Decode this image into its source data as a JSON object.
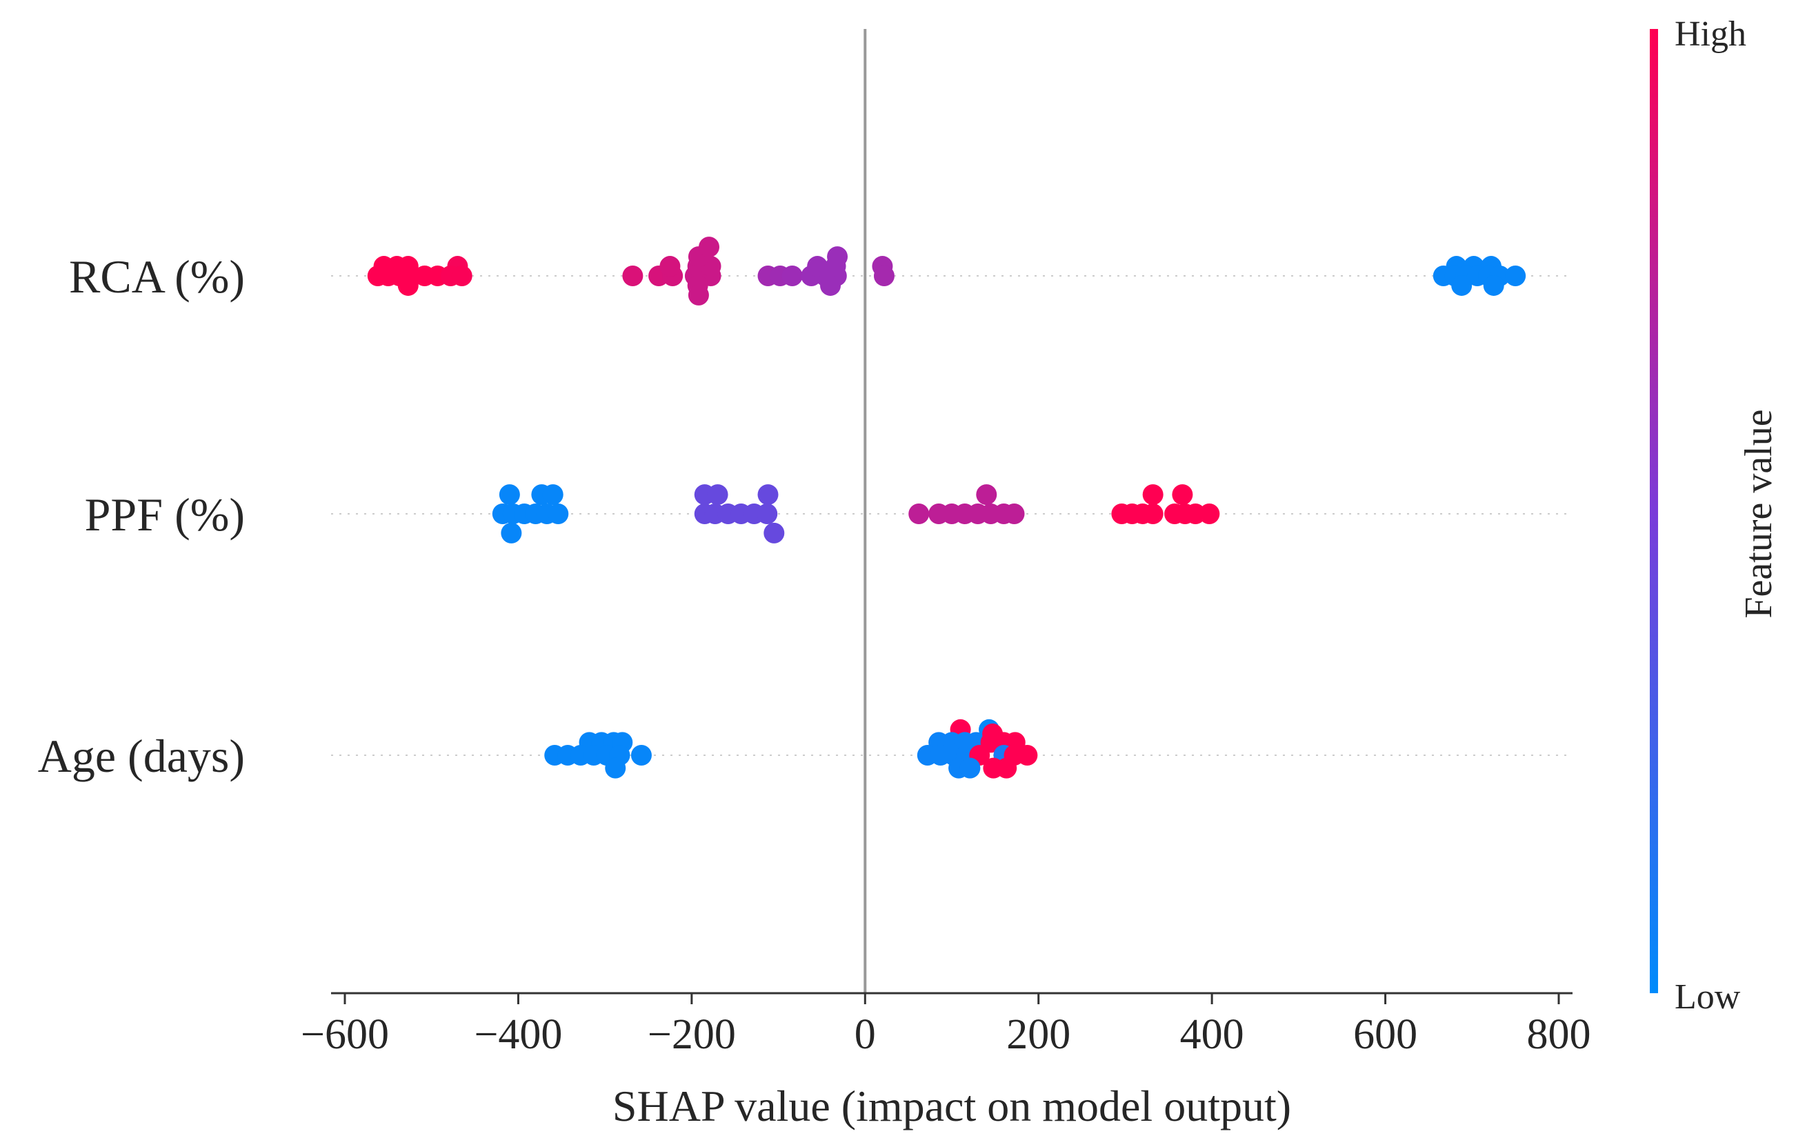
{
  "chart_data": {
    "type": "scatter",
    "subtype": "shap-beeswarm",
    "xlabel": "SHAP value (impact on model output)",
    "xlim": [
      -620,
      820
    ],
    "xticks": [
      -600,
      -400,
      -200,
      0,
      200,
      400,
      600,
      800
    ],
    "xtick_labels": [
      "−600",
      "−400",
      "−200",
      "0",
      "200",
      "400",
      "600",
      "800"
    ],
    "zero_line": 0,
    "features": [
      {
        "name": "RCA (%)",
        "points": [
          {
            "x": -555,
            "y": 0.45,
            "v": 1.0
          },
          {
            "x": -540,
            "y": 0.45,
            "v": 1.0
          },
          {
            "x": -527,
            "y": 0.45,
            "v": 1.0
          },
          {
            "x": -470,
            "y": 0.45,
            "v": 0.97
          },
          {
            "x": -562,
            "y": 0,
            "v": 1.0
          },
          {
            "x": -550,
            "y": 0,
            "v": 1.0
          },
          {
            "x": -537,
            "y": 0,
            "v": 1.0
          },
          {
            "x": -522,
            "y": 0,
            "v": 1.0
          },
          {
            "x": -508,
            "y": 0,
            "v": 1.0
          },
          {
            "x": -493,
            "y": 0,
            "v": 1.0
          },
          {
            "x": -478,
            "y": 0,
            "v": 0.98
          },
          {
            "x": -465,
            "y": 0,
            "v": 0.98
          },
          {
            "x": -527,
            "y": -0.45,
            "v": 1.0
          },
          {
            "x": -268,
            "y": 0,
            "v": 0.86
          },
          {
            "x": -238,
            "y": 0,
            "v": 0.85
          },
          {
            "x": -222,
            "y": 0,
            "v": 0.84
          },
          {
            "x": -196,
            "y": 0,
            "v": 0.8
          },
          {
            "x": -178,
            "y": 0,
            "v": 0.8
          },
          {
            "x": -225,
            "y": 0.45,
            "v": 0.84
          },
          {
            "x": -193,
            "y": 0.45,
            "v": 0.8
          },
          {
            "x": -178,
            "y": 0.45,
            "v": 0.8
          },
          {
            "x": -192,
            "y": 0.9,
            "v": 0.8
          },
          {
            "x": -180,
            "y": 1.35,
            "v": 0.8
          },
          {
            "x": -193,
            "y": -0.45,
            "v": 0.8
          },
          {
            "x": -192,
            "y": -0.9,
            "v": 0.8
          },
          {
            "x": -112,
            "y": 0,
            "v": 0.65
          },
          {
            "x": -98,
            "y": 0,
            "v": 0.64
          },
          {
            "x": -84,
            "y": 0,
            "v": 0.63
          },
          {
            "x": -62,
            "y": 0,
            "v": 0.62
          },
          {
            "x": -46,
            "y": 0,
            "v": 0.62
          },
          {
            "x": -33,
            "y": 0,
            "v": 0.62
          },
          {
            "x": -55,
            "y": 0.45,
            "v": 0.62
          },
          {
            "x": -34,
            "y": 0.45,
            "v": 0.62
          },
          {
            "x": -32,
            "y": 0.9,
            "v": 0.62
          },
          {
            "x": -40,
            "y": -0.45,
            "v": 0.62
          },
          {
            "x": 20,
            "y": 0.45,
            "v": 0.66
          },
          {
            "x": 22,
            "y": 0,
            "v": 0.66
          },
          {
            "x": 682,
            "y": 0.45,
            "v": 0.03
          },
          {
            "x": 702,
            "y": 0.45,
            "v": 0.03
          },
          {
            "x": 722,
            "y": 0.45,
            "v": 0.03
          },
          {
            "x": 667,
            "y": 0,
            "v": 0.03
          },
          {
            "x": 680,
            "y": 0,
            "v": 0.03
          },
          {
            "x": 693,
            "y": 0,
            "v": 0.03
          },
          {
            "x": 706,
            "y": 0,
            "v": 0.03
          },
          {
            "x": 719,
            "y": 0,
            "v": 0.03
          },
          {
            "x": 732,
            "y": 0,
            "v": 0.03
          },
          {
            "x": 750,
            "y": 0,
            "v": 0.03
          },
          {
            "x": 688,
            "y": -0.45,
            "v": 0.03
          },
          {
            "x": 725,
            "y": -0.45,
            "v": 0.03
          }
        ]
      },
      {
        "name": "PPF (%)",
        "points": [
          {
            "x": -410,
            "y": 0.9,
            "v": 0.03
          },
          {
            "x": -373,
            "y": 0.9,
            "v": 0.03
          },
          {
            "x": -360,
            "y": 0.9,
            "v": 0.03
          },
          {
            "x": -418,
            "y": 0,
            "v": 0.03
          },
          {
            "x": -406,
            "y": 0,
            "v": 0.03
          },
          {
            "x": -393,
            "y": 0,
            "v": 0.03
          },
          {
            "x": -380,
            "y": 0,
            "v": 0.03
          },
          {
            "x": -367,
            "y": 0,
            "v": 0.03
          },
          {
            "x": -354,
            "y": 0,
            "v": 0.03
          },
          {
            "x": -408,
            "y": -0.9,
            "v": 0.03
          },
          {
            "x": -185,
            "y": 0.9,
            "v": 0.42
          },
          {
            "x": -170,
            "y": 0.9,
            "v": 0.42
          },
          {
            "x": -112,
            "y": 0.9,
            "v": 0.42
          },
          {
            "x": -185,
            "y": 0,
            "v": 0.42
          },
          {
            "x": -173,
            "y": 0,
            "v": 0.42
          },
          {
            "x": -158,
            "y": 0,
            "v": 0.42
          },
          {
            "x": -143,
            "y": 0,
            "v": 0.42
          },
          {
            "x": -128,
            "y": 0,
            "v": 0.42
          },
          {
            "x": -113,
            "y": 0,
            "v": 0.42
          },
          {
            "x": -105,
            "y": -0.9,
            "v": 0.42
          },
          {
            "x": 140,
            "y": 0.9,
            "v": 0.75
          },
          {
            "x": 62,
            "y": 0,
            "v": 0.75
          },
          {
            "x": 85,
            "y": 0,
            "v": 0.75
          },
          {
            "x": 100,
            "y": 0,
            "v": 0.75
          },
          {
            "x": 115,
            "y": 0,
            "v": 0.75
          },
          {
            "x": 130,
            "y": 0,
            "v": 0.75
          },
          {
            "x": 145,
            "y": 0,
            "v": 0.75
          },
          {
            "x": 160,
            "y": 0,
            "v": 0.75
          },
          {
            "x": 172,
            "y": 0,
            "v": 0.75
          },
          {
            "x": 332,
            "y": 0.9,
            "v": 1.0
          },
          {
            "x": 366,
            "y": 0.9,
            "v": 1.0
          },
          {
            "x": 296,
            "y": 0,
            "v": 1.0
          },
          {
            "x": 308,
            "y": 0,
            "v": 1.0
          },
          {
            "x": 320,
            "y": 0,
            "v": 1.0
          },
          {
            "x": 332,
            "y": 0,
            "v": 1.0
          },
          {
            "x": 357,
            "y": 0,
            "v": 1.0
          },
          {
            "x": 369,
            "y": 0,
            "v": 1.0
          },
          {
            "x": 381,
            "y": 0,
            "v": 1.0
          },
          {
            "x": 397,
            "y": 0,
            "v": 1.0
          }
        ]
      },
      {
        "name": "Age (days)",
        "points": [
          {
            "x": -318,
            "y": 0.6,
            "v": 0.03
          },
          {
            "x": -304,
            "y": 0.6,
            "v": 0.03
          },
          {
            "x": -290,
            "y": 0.6,
            "v": 0.03
          },
          {
            "x": -280,
            "y": 0.6,
            "v": 0.03
          },
          {
            "x": -358,
            "y": 0,
            "v": 0.03
          },
          {
            "x": -343,
            "y": 0,
            "v": 0.03
          },
          {
            "x": -328,
            "y": 0,
            "v": 0.03
          },
          {
            "x": -313,
            "y": 0,
            "v": 0.03
          },
          {
            "x": -298,
            "y": 0,
            "v": 0.03
          },
          {
            "x": -283,
            "y": 0,
            "v": 0.03
          },
          {
            "x": -258,
            "y": 0,
            "v": 0.03
          },
          {
            "x": -288,
            "y": -0.6,
            "v": 0.03
          },
          {
            "x": 110,
            "y": 1.2,
            "v": 1.0
          },
          {
            "x": 143,
            "y": 1.2,
            "v": 0.02
          },
          {
            "x": 85,
            "y": 0.6,
            "v": 0.05
          },
          {
            "x": 100,
            "y": 0.6,
            "v": 0.05
          },
          {
            "x": 115,
            "y": 0.6,
            "v": 0.05
          },
          {
            "x": 128,
            "y": 0.6,
            "v": 0.05
          },
          {
            "x": 145,
            "y": 0.6,
            "v": 1.0
          },
          {
            "x": 160,
            "y": 0.6,
            "v": 1.0
          },
          {
            "x": 173,
            "y": 0.6,
            "v": 1.0
          },
          {
            "x": 72,
            "y": 0,
            "v": 0.05
          },
          {
            "x": 87,
            "y": 0,
            "v": 0.05
          },
          {
            "x": 102,
            "y": 0,
            "v": 0.05
          },
          {
            "x": 117,
            "y": 0,
            "v": 0.05
          },
          {
            "x": 132,
            "y": 0,
            "v": 1.0
          },
          {
            "x": 147,
            "y": 1,
            "v": 1.0
          },
          {
            "x": 160,
            "y": 0,
            "v": 0.1
          },
          {
            "x": 172,
            "y": 0,
            "v": 1.0
          },
          {
            "x": 187,
            "y": 0,
            "v": 1.0
          },
          {
            "x": 108,
            "y": -0.6,
            "v": 0.05
          },
          {
            "x": 121,
            "y": -0.6,
            "v": 0.05
          },
          {
            "x": 148,
            "y": -0.6,
            "v": 1.0
          },
          {
            "x": 163,
            "y": -0.6,
            "v": 1.0
          }
        ]
      }
    ],
    "colorbar": {
      "label": "Feature value",
      "high_label": "High",
      "low_label": "Low",
      "low_color": "#008bfb",
      "high_color": "#ff0052"
    },
    "grid": false
  }
}
